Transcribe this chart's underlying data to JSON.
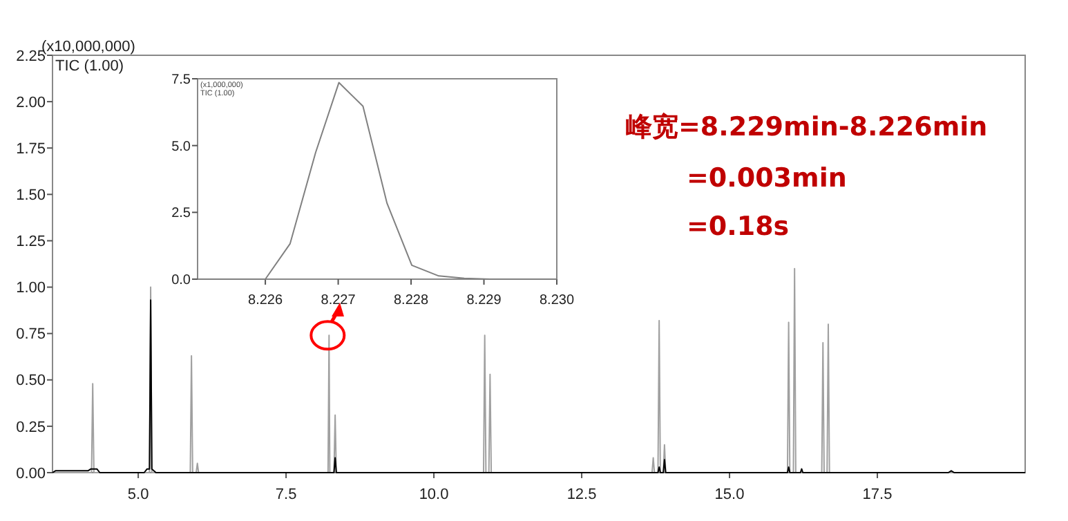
{
  "chart_data": [
    {
      "type": "line",
      "ylabel": "(x10,000,000)",
      "annotations": [
        "TIC (1.00)",
        "峰宽=8.229min-8.226min",
        "=0.003min",
        "=0.18s"
      ],
      "xlim": [
        3.55,
        20.0
      ],
      "xticks": [
        {
          "value": 5,
          "label": "5.0"
        },
        {
          "value": 7.5,
          "label": "7.5"
        },
        {
          "value": 10,
          "label": "10.0"
        },
        {
          "value": 12.5,
          "label": "12.5"
        },
        {
          "value": 15,
          "label": "15.0"
        },
        {
          "value": 17.5,
          "label": "17.5"
        }
      ],
      "ylim": [
        0,
        2.25
      ],
      "yticks": [
        {
          "value": 0,
          "label": "0.00"
        },
        {
          "value": 0.25,
          "label": "0.25"
        },
        {
          "value": 0.5,
          "label": "0.50"
        },
        {
          "value": 0.75,
          "label": "0.75"
        },
        {
          "value": 1,
          "label": "1.00"
        },
        {
          "value": 1.25,
          "label": "1.25"
        },
        {
          "value": 1.5,
          "label": "1.50"
        },
        {
          "value": 1.75,
          "label": "1.75"
        },
        {
          "value": 2,
          "label": "2.00"
        },
        {
          "value": 2.25,
          "label": "2.25"
        }
      ],
      "series": [
        {
          "color": "#a0a0a0",
          "x": [
            3.55,
            4.21,
            4.23,
            4.25,
            5.19,
            5.21,
            5.23,
            5.88,
            5.9,
            5.92,
            5.98,
            6.0,
            6.02,
            8.21,
            8.227,
            8.24,
            8.31,
            8.33,
            8.35,
            10.84,
            10.86,
            10.88,
            10.93,
            10.95,
            10.97,
            13.69,
            13.71,
            13.73,
            13.79,
            13.81,
            13.83,
            13.88,
            13.9,
            13.92,
            15.98,
            16.0,
            16.02,
            16.08,
            16.1,
            16.12,
            16.56,
            16.58,
            16.6,
            16.65,
            16.67,
            16.69,
            20.0
          ],
          "values": [
            0,
            0,
            0.48,
            0,
            0,
            1.0,
            0,
            0,
            0.63,
            0,
            0,
            0.05,
            0,
            0,
            0.74,
            0,
            0,
            0.31,
            0,
            0,
            0.74,
            0,
            0,
            0.53,
            0,
            0,
            0.08,
            0,
            0,
            0.82,
            0,
            0,
            0.15,
            0,
            0,
            0.81,
            0,
            0,
            1.1,
            0,
            0,
            0.7,
            0,
            0,
            0.8,
            0,
            0
          ]
        },
        {
          "color": "#000000",
          "x": [
            3.55,
            3.6,
            4.15,
            4.2,
            4.3,
            4.35,
            5.1,
            5.15,
            5.19,
            5.21,
            5.23,
            5.3,
            8.31,
            8.33,
            8.35,
            13.79,
            13.81,
            13.83,
            13.88,
            13.9,
            13.92,
            15.98,
            16.0,
            16.02,
            16.2,
            16.22,
            16.24,
            18.7,
            18.75,
            18.8,
            20.0
          ],
          "values": [
            0,
            0.01,
            0.01,
            0.02,
            0.02,
            0,
            0,
            0.02,
            0.02,
            0.93,
            0.02,
            0,
            0,
            0.08,
            0,
            0,
            0.03,
            0,
            0,
            0.07,
            0,
            0,
            0.03,
            0,
            0,
            0.02,
            0,
            0,
            0.01,
            0,
            0
          ]
        }
      ]
    },
    {
      "type": "line",
      "ylabel": "(x1,000,000)",
      "annotations": [
        "TIC (1.00)"
      ],
      "xlim": [
        8.22507,
        8.23
      ],
      "xticks": [
        {
          "value": 8.226,
          "label": "8.226"
        },
        {
          "value": 8.227,
          "label": "8.227"
        },
        {
          "value": 8.228,
          "label": "8.228"
        },
        {
          "value": 8.229,
          "label": "8.229"
        },
        {
          "value": 8.23,
          "label": "8.230"
        }
      ],
      "ylim": [
        0,
        7.5
      ],
      "yticks": [
        {
          "value": 0,
          "label": "0.0"
        },
        {
          "value": 2.5,
          "label": "2.5"
        },
        {
          "value": 5,
          "label": "5.0"
        },
        {
          "value": 7.5,
          "label": "7.5"
        }
      ],
      "series": [
        {
          "color": "#808080",
          "x": [
            8.22507,
            8.226,
            8.22634,
            8.22669,
            8.22701,
            8.22734,
            8.22767,
            8.22801,
            8.22838,
            8.22873,
            8.22908,
            8.23
          ],
          "values": [
            0,
            0,
            1.33,
            4.74,
            7.36,
            6.47,
            2.84,
            0.52,
            0.12,
            0.03,
            0,
            0
          ]
        }
      ]
    }
  ]
}
